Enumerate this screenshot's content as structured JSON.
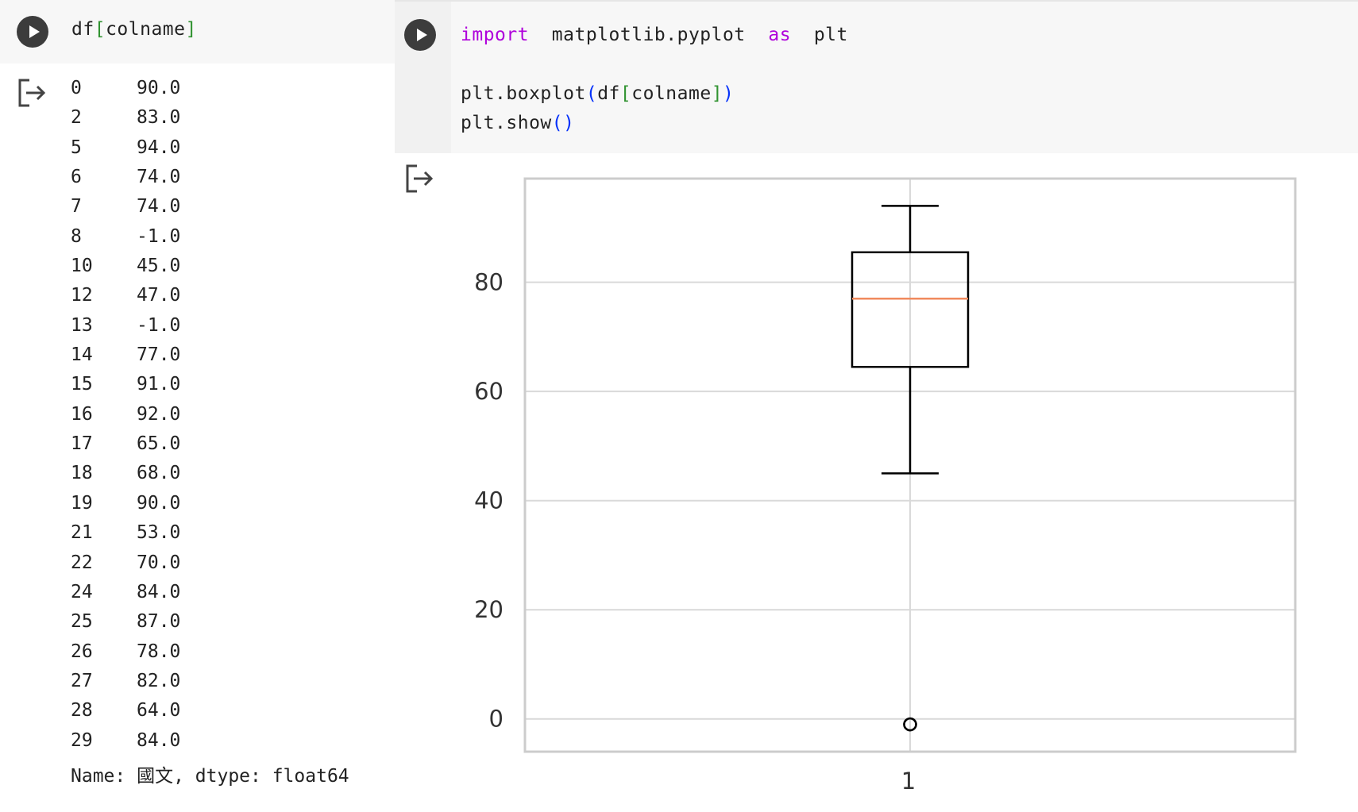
{
  "left_cell": {
    "code": {
      "prefix": "df",
      "open": "[",
      "arg": "colname",
      "close": "]"
    },
    "output": {
      "rows": [
        {
          "index": "0",
          "value": "90.0"
        },
        {
          "index": "2",
          "value": "83.0"
        },
        {
          "index": "5",
          "value": "94.0"
        },
        {
          "index": "6",
          "value": "74.0"
        },
        {
          "index": "7",
          "value": "74.0"
        },
        {
          "index": "8",
          "value": "-1.0"
        },
        {
          "index": "10",
          "value": "45.0"
        },
        {
          "index": "12",
          "value": "47.0"
        },
        {
          "index": "13",
          "value": "-1.0"
        },
        {
          "index": "14",
          "value": "77.0"
        },
        {
          "index": "15",
          "value": "91.0"
        },
        {
          "index": "16",
          "value": "92.0"
        },
        {
          "index": "17",
          "value": "65.0"
        },
        {
          "index": "18",
          "value": "68.0"
        },
        {
          "index": "19",
          "value": "90.0"
        },
        {
          "index": "21",
          "value": "53.0"
        },
        {
          "index": "22",
          "value": "70.0"
        },
        {
          "index": "24",
          "value": "84.0"
        },
        {
          "index": "25",
          "value": "87.0"
        },
        {
          "index": "26",
          "value": "78.0"
        },
        {
          "index": "27",
          "value": "82.0"
        },
        {
          "index": "28",
          "value": "64.0"
        },
        {
          "index": "29",
          "value": "84.0"
        }
      ],
      "footer": "Name: 國文, dtype: float64"
    }
  },
  "right_cell": {
    "code": {
      "line1": {
        "kw_import": "import",
        "module": "matplotlib.pyplot",
        "kw_as": "as",
        "alias": "plt"
      },
      "line2": {
        "call": "plt.boxplot",
        "open": "(",
        "inner": "df",
        "open2": "[",
        "arg": "colname",
        "close2": "]",
        "close": ")"
      },
      "line3": {
        "call": "plt.show",
        "parens": "()"
      }
    }
  },
  "colors": {
    "keyword": "#af00db",
    "bracket_green": "#319331",
    "bracket_blue": "#0431fa",
    "median": "#f08a5d",
    "grid": "#d9d9d9",
    "frame": "#cccccc"
  },
  "icons": {
    "run": "play-icon",
    "output": "output-arrow-icon"
  },
  "chart_data": {
    "type": "box",
    "categories": [
      "1"
    ],
    "series": [
      {
        "whisker_low": 45,
        "q1": 64.5,
        "median": 77,
        "q3": 85.5,
        "whisker_high": 94,
        "outliers": [
          -1,
          -1
        ]
      }
    ],
    "ylim": [
      -6,
      99
    ],
    "yticks": [
      0,
      20,
      40,
      60,
      80
    ],
    "xticks": [
      "1"
    ],
    "grid": true
  }
}
